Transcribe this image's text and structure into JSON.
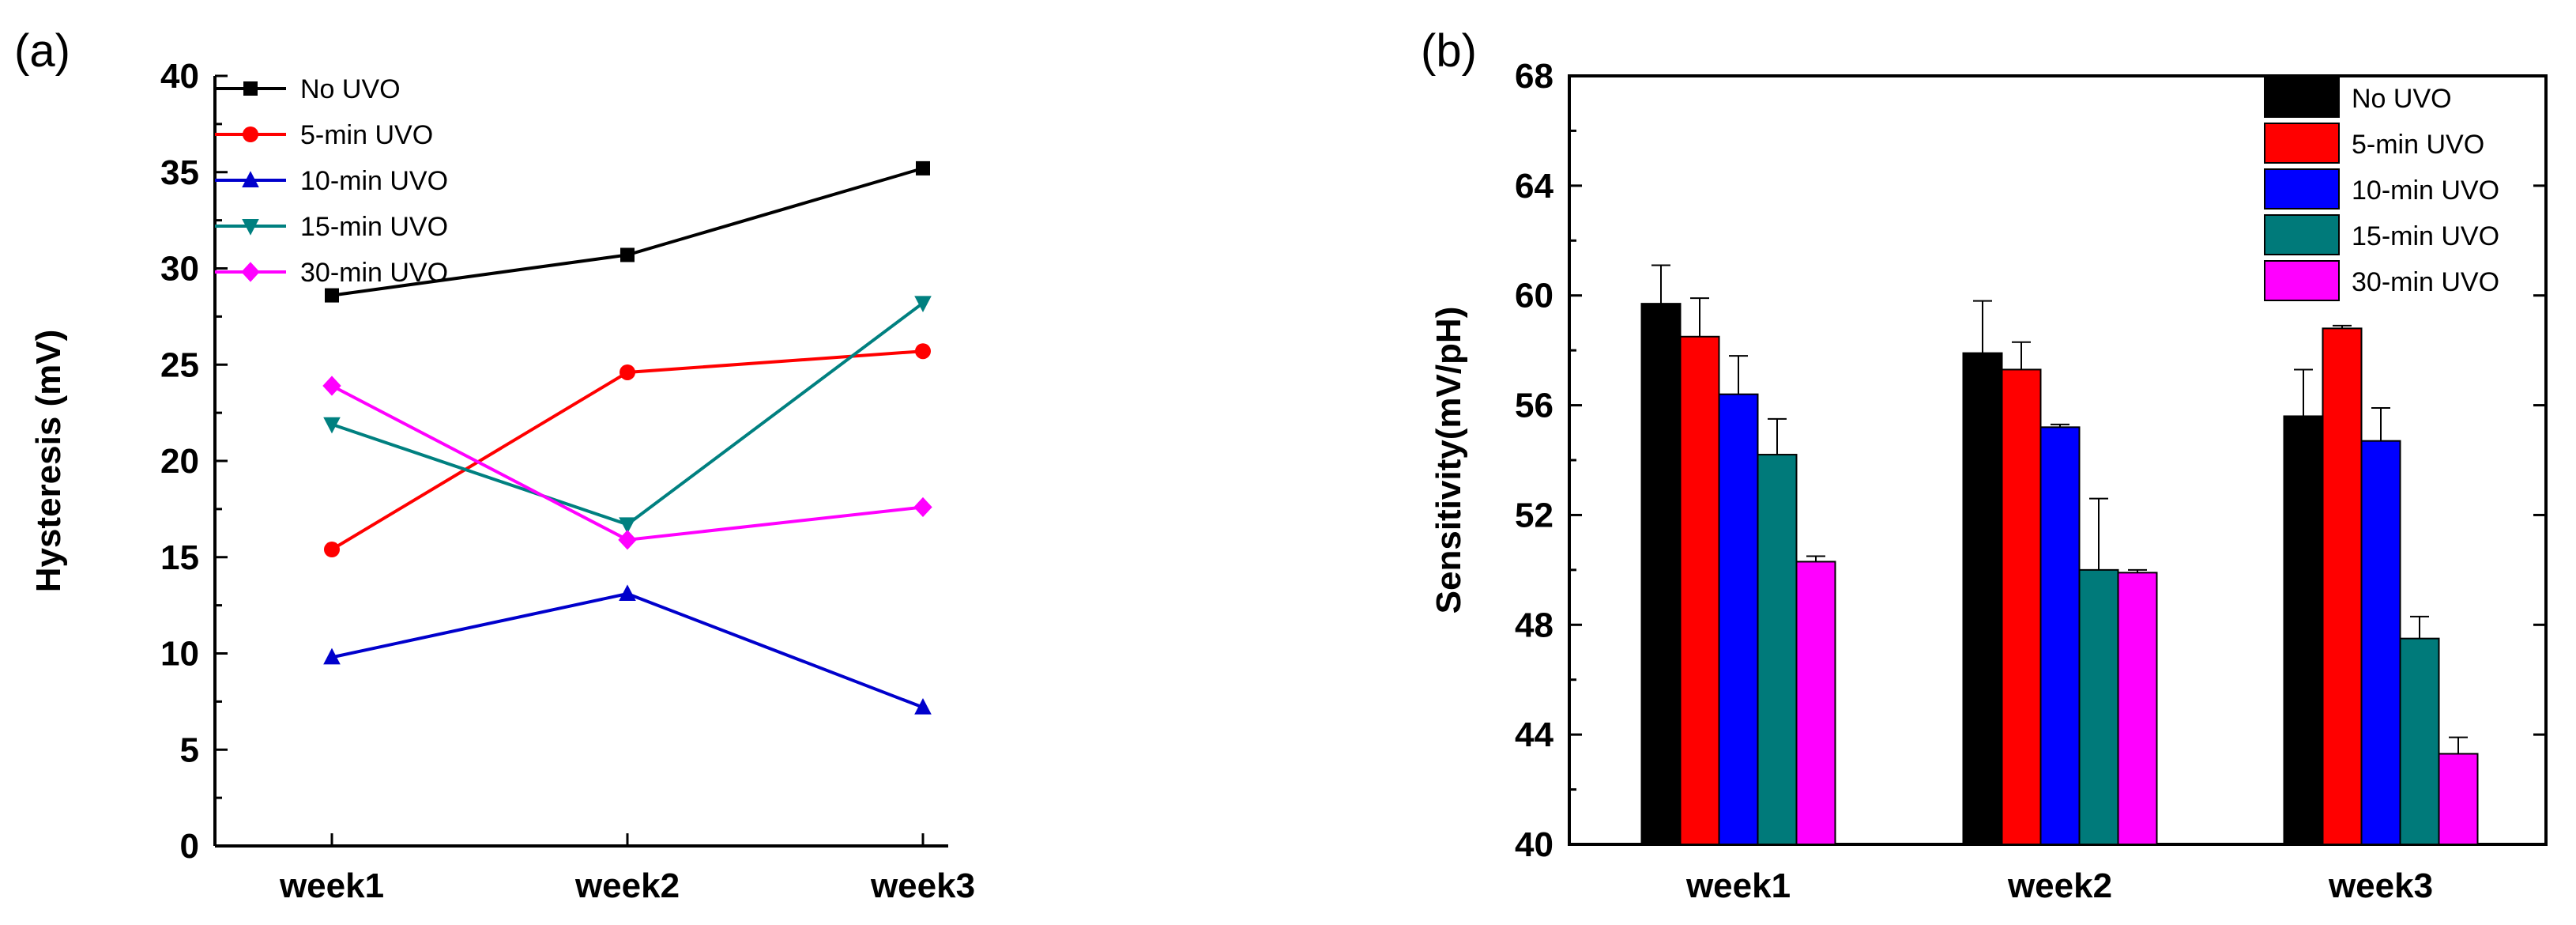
{
  "chart_data": [
    {
      "id": "a",
      "panel_label": "(a)",
      "type": "line",
      "categories": [
        "week1",
        "week2",
        "week3"
      ],
      "ylabel": "Hysteresis (mV)",
      "xlabel": "",
      "ylim": [
        0,
        40
      ],
      "yticks": [
        "0",
        "5",
        "10",
        "15",
        "20",
        "25",
        "30",
        "35",
        "40"
      ],
      "legend_position": "top-left",
      "series": [
        {
          "name": "No UVO",
          "color": "#000000",
          "marker": "square",
          "values": [
            28.6,
            30.7,
            35.2
          ]
        },
        {
          "name": "5-min UVO",
          "color": "#ff0000",
          "marker": "circle",
          "values": [
            15.4,
            24.6,
            25.7
          ]
        },
        {
          "name": "10-min UVO",
          "color": "#0000cc",
          "marker": "triangle-up",
          "values": [
            9.8,
            13.1,
            7.2
          ]
        },
        {
          "name": "15-min UVO",
          "color": "#008080",
          "marker": "triangle-down",
          "values": [
            21.9,
            16.7,
            28.2
          ]
        },
        {
          "name": "30-min UVO",
          "color": "#ff00ff",
          "marker": "diamond",
          "values": [
            23.9,
            15.9,
            17.6
          ]
        }
      ]
    },
    {
      "id": "b",
      "panel_label": "(b)",
      "type": "bar",
      "categories": [
        "week1",
        "week2",
        "week3"
      ],
      "ylabel": "Sensitivity(mV/pH)",
      "xlabel": "",
      "ylim": [
        40,
        68
      ],
      "yticks": [
        "40",
        "44",
        "48",
        "52",
        "56",
        "60",
        "64",
        "68"
      ],
      "legend_position": "top-right",
      "series": [
        {
          "name": "No UVO",
          "color": "#000000",
          "values": [
            59.7,
            57.9,
            55.6
          ],
          "errors": [
            1.4,
            1.9,
            1.7
          ]
        },
        {
          "name": "5-min UVO",
          "color": "#ff0000",
          "values": [
            58.5,
            57.3,
            58.8
          ],
          "errors": [
            1.4,
            1.0,
            0.1
          ]
        },
        {
          "name": "10-min UVO",
          "color": "#0000ff",
          "values": [
            56.4,
            55.2,
            54.7
          ],
          "errors": [
            1.4,
            0.1,
            1.2
          ]
        },
        {
          "name": "15-min UVO",
          "color": "#007a7a",
          "values": [
            54.2,
            50.0,
            47.5
          ],
          "errors": [
            1.3,
            2.6,
            0.8
          ]
        },
        {
          "name": "30-min UVO",
          "color": "#ff00ff",
          "values": [
            50.3,
            49.9,
            43.3
          ],
          "errors": [
            0.2,
            0.1,
            0.6
          ]
        }
      ]
    }
  ]
}
